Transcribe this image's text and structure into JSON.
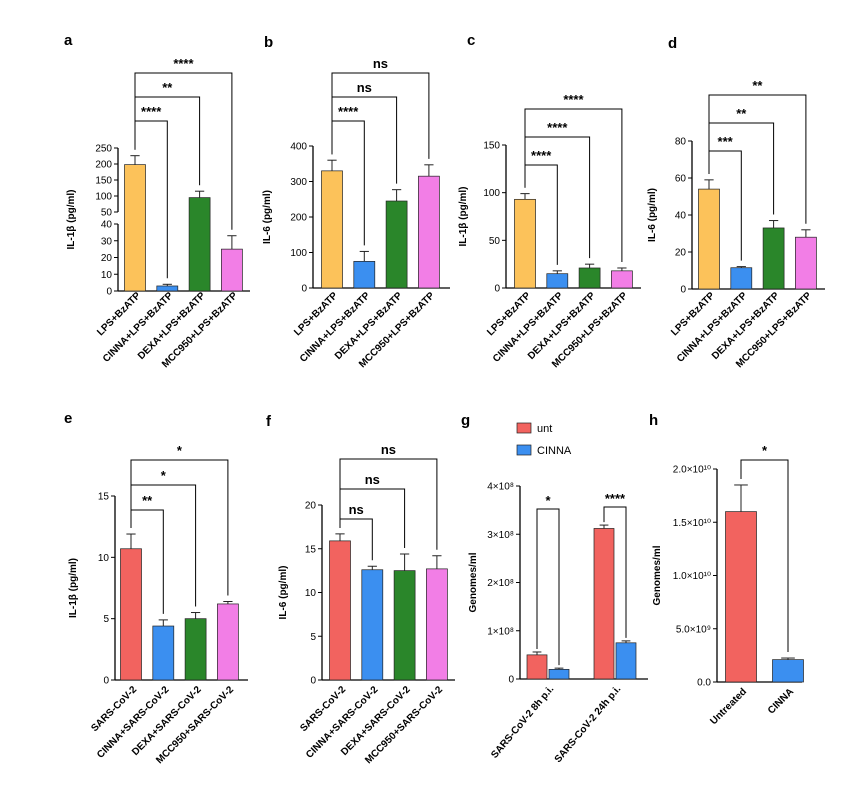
{
  "chart_data": [
    {
      "panel": "a",
      "type": "bar",
      "ylabel": "IL-1β (pg/ml)",
      "categories": [
        "LPS+BzATP",
        "CINNA+LPS+BzATP",
        "DEXA+LPS+BzATP",
        "MCC950+LPS+BzATP"
      ],
      "values": [
        198,
        3,
        95,
        25
      ],
      "errors": [
        28,
        1,
        20,
        8
      ],
      "colors": [
        "#fcc25a",
        "#3b8ff0",
        "#2a862a",
        "#f27ee6"
      ],
      "ylim": [
        0,
        250
      ],
      "axis_break": [
        40,
        50
      ],
      "yticks": [
        "0",
        "10",
        "20",
        "30",
        "40",
        "50",
        "100",
        "150",
        "200",
        "250"
      ],
      "comparisons": [
        {
          "vs": 1,
          "label": "****"
        },
        {
          "vs": 2,
          "label": "**"
        },
        {
          "vs": 3,
          "label": "****"
        }
      ]
    },
    {
      "panel": "b",
      "type": "bar",
      "ylabel": "IL-6 (pg/ml)",
      "categories": [
        "LPS+BzATP",
        "CINNA+LPS+BzATP",
        "DEXA+LPS+BzATP",
        "MCC950+LPS+BzATP"
      ],
      "values": [
        330,
        75,
        245,
        315
      ],
      "errors": [
        30,
        28,
        32,
        32
      ],
      "colors": [
        "#fcc25a",
        "#3b8ff0",
        "#2a862a",
        "#f27ee6"
      ],
      "ylim": [
        0,
        400
      ],
      "yticks": [
        "0",
        "100",
        "200",
        "300",
        "400"
      ],
      "comparisons": [
        {
          "vs": 1,
          "label": "****"
        },
        {
          "vs": 2,
          "label": "ns"
        },
        {
          "vs": 3,
          "label": "ns"
        }
      ]
    },
    {
      "panel": "c",
      "type": "bar",
      "ylabel": "IL-1β (pg/ml)",
      "categories": [
        "LPS+BzATP",
        "CINNA+LPS+BzATP",
        "DEXA+LPS+BzATP",
        "MCC950+LPS+BzATP"
      ],
      "values": [
        93,
        15,
        21,
        18
      ],
      "errors": [
        6,
        3,
        4,
        3
      ],
      "colors": [
        "#fcc25a",
        "#3b8ff0",
        "#2a862a",
        "#f27ee6"
      ],
      "ylim": [
        0,
        150
      ],
      "yticks": [
        "0",
        "50",
        "100",
        "150"
      ],
      "comparisons": [
        {
          "vs": 1,
          "label": "****"
        },
        {
          "vs": 2,
          "label": "****"
        },
        {
          "vs": 3,
          "label": "****"
        }
      ]
    },
    {
      "panel": "d",
      "type": "bar",
      "ylabel": "IL-6 (pg/ml)",
      "categories": [
        "LPS+BzATP",
        "CINNA+LPS+BzATP",
        "DEXA+LPS+BzATP",
        "MCC950+LPS+BzATP"
      ],
      "values": [
        54,
        11.5,
        33,
        28
      ],
      "errors": [
        5,
        0.6,
        4,
        4
      ],
      "colors": [
        "#fcc25a",
        "#3b8ff0",
        "#2a862a",
        "#f27ee6"
      ],
      "ylim": [
        0,
        80
      ],
      "yticks": [
        "0",
        "20",
        "40",
        "60",
        "80"
      ],
      "comparisons": [
        {
          "vs": 1,
          "label": "***"
        },
        {
          "vs": 2,
          "label": "**"
        },
        {
          "vs": 3,
          "label": "**"
        }
      ]
    },
    {
      "panel": "e",
      "type": "bar",
      "ylabel": "IL-1β (pg/ml)",
      "categories": [
        "SARS-CoV-2",
        "CINNA+SARS-CoV-2",
        "DEXA+SARS-CoV-2",
        "MCC950+SARS-CoV-2"
      ],
      "values": [
        10.7,
        4.4,
        5.0,
        6.2
      ],
      "errors": [
        1.2,
        0.5,
        0.5,
        0.2
      ],
      "colors": [
        "#f2635f",
        "#3b8ff0",
        "#2a862a",
        "#f27ee6"
      ],
      "ylim": [
        0,
        15
      ],
      "yticks": [
        "0",
        "5",
        "10",
        "15"
      ],
      "comparisons": [
        {
          "vs": 1,
          "label": "**"
        },
        {
          "vs": 2,
          "label": "*"
        },
        {
          "vs": 3,
          "label": "*"
        }
      ]
    },
    {
      "panel": "f",
      "type": "bar",
      "ylabel": "IL-6 (pg/ml)",
      "categories": [
        "SARS-CoV-2",
        "CINNA+SARS-CoV-2",
        "DEXA+SARS-CoV-2",
        "MCC950+SARS-CoV-2"
      ],
      "values": [
        15.9,
        12.6,
        12.5,
        12.7
      ],
      "errors": [
        0.8,
        0.4,
        1.9,
        1.5
      ],
      "colors": [
        "#f2635f",
        "#3b8ff0",
        "#2a862a",
        "#f27ee6"
      ],
      "ylim": [
        0,
        20
      ],
      "yticks": [
        "0",
        "5",
        "10",
        "15",
        "20"
      ],
      "comparisons": [
        {
          "vs": 1,
          "label": "ns"
        },
        {
          "vs": 2,
          "label": "ns"
        },
        {
          "vs": 3,
          "label": "ns"
        }
      ]
    },
    {
      "panel": "g",
      "type": "bar",
      "ylabel": "Genomes/ml",
      "categories": [
        "SARS-CoV-2 8h p.i.",
        "SARS-CoV-2 24h p.i."
      ],
      "series": [
        {
          "name": "unt",
          "color": "#f2635f",
          "values": [
            50000000.0,
            312000000.0
          ],
          "errors": [
            6000000.0,
            7000000.0
          ]
        },
        {
          "name": "CINNA",
          "color": "#3b8ff0",
          "values": [
            20000000.0,
            75000000.0
          ],
          "errors": [
            2500000.0,
            4000000.0
          ]
        }
      ],
      "ylim": [
        0,
        400000000.0
      ],
      "yticks": [
        "0",
        "1×10⁸",
        "2×10⁸",
        "3×10⁸",
        "4×10⁸"
      ],
      "legend": "top-left",
      "comparisons": [
        {
          "group": 0,
          "label": "*"
        },
        {
          "group": 1,
          "label": "****"
        }
      ]
    },
    {
      "panel": "h",
      "type": "bar",
      "ylabel": "Genomes/ml",
      "categories": [
        "Untreated",
        "CINNA"
      ],
      "values": [
        16000000000.0,
        2100000000.0
      ],
      "errors": [
        2500000000.0,
        150000000.0
      ],
      "colors": [
        "#f2635f",
        "#3b8ff0"
      ],
      "ylim": [
        0,
        20000000000.0
      ],
      "yticks": [
        "0.0",
        "5.0×10⁹",
        "1.0×10¹⁰",
        "1.5×10¹⁰",
        "2.0×10¹⁰"
      ],
      "comparisons": [
        {
          "vs": 1,
          "label": "*"
        }
      ]
    }
  ]
}
